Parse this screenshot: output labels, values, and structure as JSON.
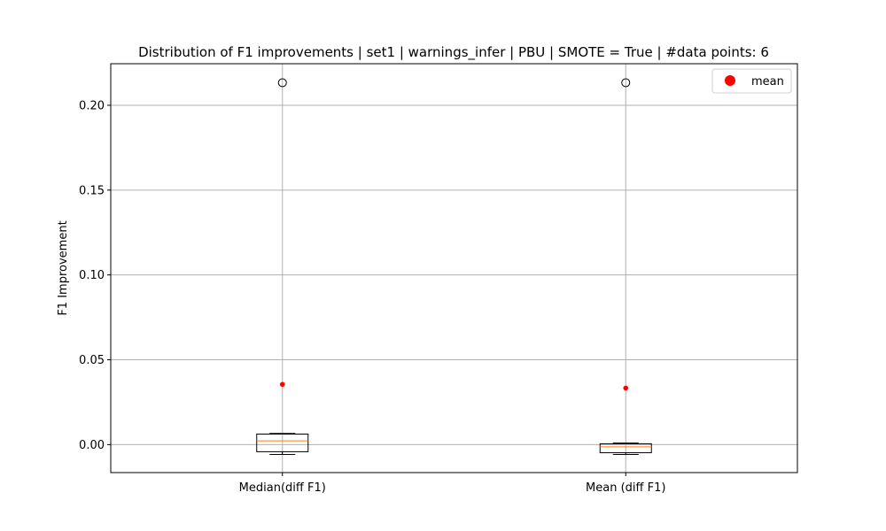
{
  "chart_data": {
    "type": "box",
    "title": "Distribution of F1 improvements | set1 | warnings_infer | PBU | SMOTE = True | #data points: 6",
    "xlabel": "",
    "ylabel": "F1 Improvement",
    "ylim": [
      -0.0165,
      0.2245
    ],
    "yticks": [
      0.0,
      0.05,
      0.1,
      0.15,
      0.2
    ],
    "ytick_labels": [
      "0.00",
      "0.05",
      "0.10",
      "0.15",
      "0.20"
    ],
    "grid": true,
    "legend": {
      "position": "top-right",
      "entries": [
        {
          "label": "mean",
          "color": "#ff0000",
          "marker": "circle"
        }
      ]
    },
    "categories": [
      "Median(diff F1)",
      "Mean (diff F1)"
    ],
    "boxes": [
      {
        "category": "Median(diff F1)",
        "whisker_low": -0.0058,
        "q1": -0.0042,
        "median": 0.0022,
        "q3": 0.0062,
        "whisker_high": 0.0066,
        "outliers": [
          0.2133
        ],
        "mean": 0.0355
      },
      {
        "category": "Mean (diff F1)",
        "whisker_low": -0.0058,
        "q1": -0.0048,
        "median": -0.0013,
        "q3": 0.0005,
        "whisker_high": 0.0009,
        "outliers": [
          0.2133
        ],
        "mean": 0.0333
      }
    ],
    "colors": {
      "box": "#000000",
      "median": "#ff7f0e",
      "mean": "#ff0000",
      "grid": "#b0b0b0",
      "outlier": "#000000"
    }
  }
}
